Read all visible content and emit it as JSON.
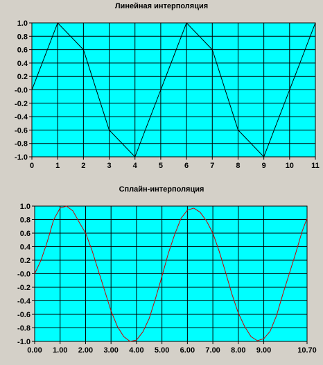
{
  "chart_data": [
    {
      "type": "line",
      "title": "Линейная интерполяция",
      "xlabel": "",
      "ylabel": "",
      "xlim": [
        0,
        11
      ],
      "ylim": [
        -1.0,
        1.0
      ],
      "grid": true,
      "background_color": "#00ffff",
      "line_color": "#000000",
      "x_ticks": [
        "0",
        "1",
        "2",
        "3",
        "4",
        "5",
        "6",
        "7",
        "8",
        "9",
        "10",
        "11"
      ],
      "y_ticks": [
        "1.0",
        "0.8",
        "0.6",
        "0.4",
        "0.2",
        "-0.0",
        "-0.2",
        "-0.4",
        "-0.6",
        "-0.8",
        "-1.0"
      ],
      "x": [
        0,
        1,
        2,
        3,
        4,
        5,
        6,
        7,
        8,
        9,
        10,
        11
      ],
      "y": [
        0.0,
        1.0,
        0.6,
        -0.6,
        -1.0,
        0.0,
        1.0,
        0.6,
        -0.6,
        -1.0,
        0.0,
        1.0
      ]
    },
    {
      "type": "line",
      "title": "Сплайн-интерполяция",
      "xlabel": "",
      "ylabel": "",
      "xlim": [
        0.0,
        10.7
      ],
      "ylim": [
        -1.0,
        1.0
      ],
      "grid": true,
      "background_color": "#00ffff",
      "line_color": "#cc0000",
      "x_ticks": [
        "0.00",
        "1.00",
        "2.00",
        "3.00",
        "4.00",
        "5.00",
        "6.00",
        "7.00",
        "8.00",
        "9.00",
        "10.70"
      ],
      "y_ticks": [
        "1.0",
        "0.8",
        "0.6",
        "0.4",
        "0.2",
        "-0.0",
        "-0.2",
        "-0.4",
        "-0.6",
        "-0.8",
        "-1.0"
      ],
      "x": [
        0.0,
        0.25,
        0.5,
        0.75,
        1.0,
        1.25,
        1.5,
        1.75,
        2.0,
        2.25,
        2.5,
        2.75,
        3.0,
        3.25,
        3.5,
        3.75,
        4.0,
        4.25,
        4.5,
        4.75,
        5.0,
        5.25,
        5.5,
        5.75,
        6.0,
        6.25,
        6.5,
        6.75,
        7.0,
        7.25,
        7.5,
        7.75,
        8.0,
        8.25,
        8.5,
        8.75,
        9.0,
        9.25,
        9.5,
        9.75,
        10.0,
        10.25,
        10.5,
        10.7
      ],
      "y": [
        0.0,
        0.2,
        0.48,
        0.8,
        0.97,
        1.0,
        0.93,
        0.76,
        0.6,
        0.35,
        0.05,
        -0.25,
        -0.55,
        -0.78,
        -0.93,
        -1.0,
        -0.98,
        -0.86,
        -0.66,
        -0.36,
        -0.04,
        0.3,
        0.58,
        0.82,
        0.94,
        0.97,
        0.91,
        0.78,
        0.6,
        0.33,
        0.02,
        -0.3,
        -0.58,
        -0.78,
        -0.93,
        -0.99,
        -0.96,
        -0.85,
        -0.62,
        -0.3,
        0.0,
        0.3,
        0.62,
        0.82
      ]
    }
  ]
}
